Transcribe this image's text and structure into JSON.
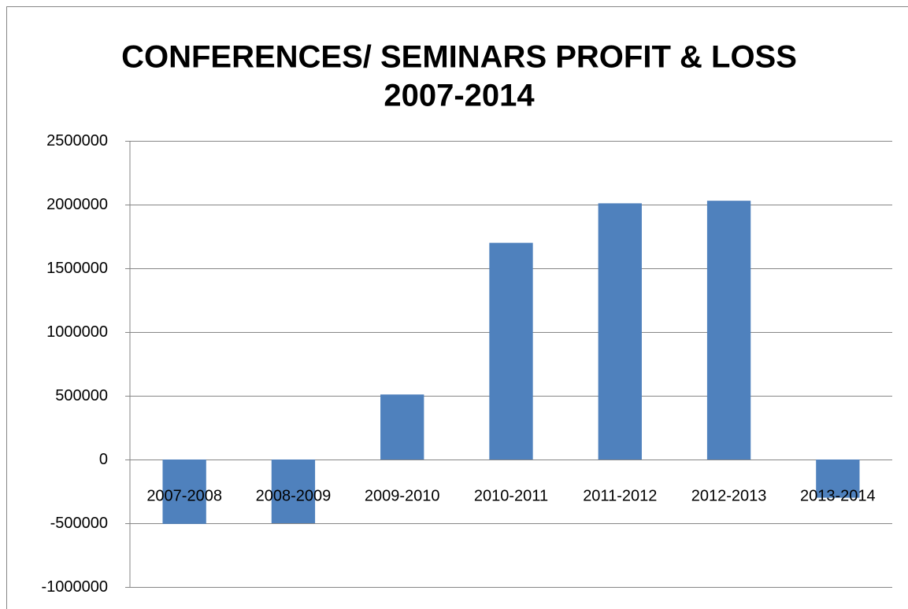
{
  "chart_data": {
    "type": "bar",
    "title": [
      "CONFERENCES/ SEMINARS PROFIT & LOSS",
      "2007-2014"
    ],
    "categories": [
      "2007-2008",
      "2008-2009",
      "2009-2010",
      "2010-2011",
      "2011-2012",
      "2012-2013",
      "2013-2014"
    ],
    "values": [
      -505000,
      -500000,
      510000,
      1700000,
      2010000,
      2030000,
      -300000
    ],
    "color": "#4f81bd",
    "ylim": [
      -1000000,
      2500000
    ],
    "yticks": [
      -1000000,
      -500000,
      0,
      500000,
      1000000,
      1500000,
      2000000,
      2500000
    ],
    "grid": true
  }
}
